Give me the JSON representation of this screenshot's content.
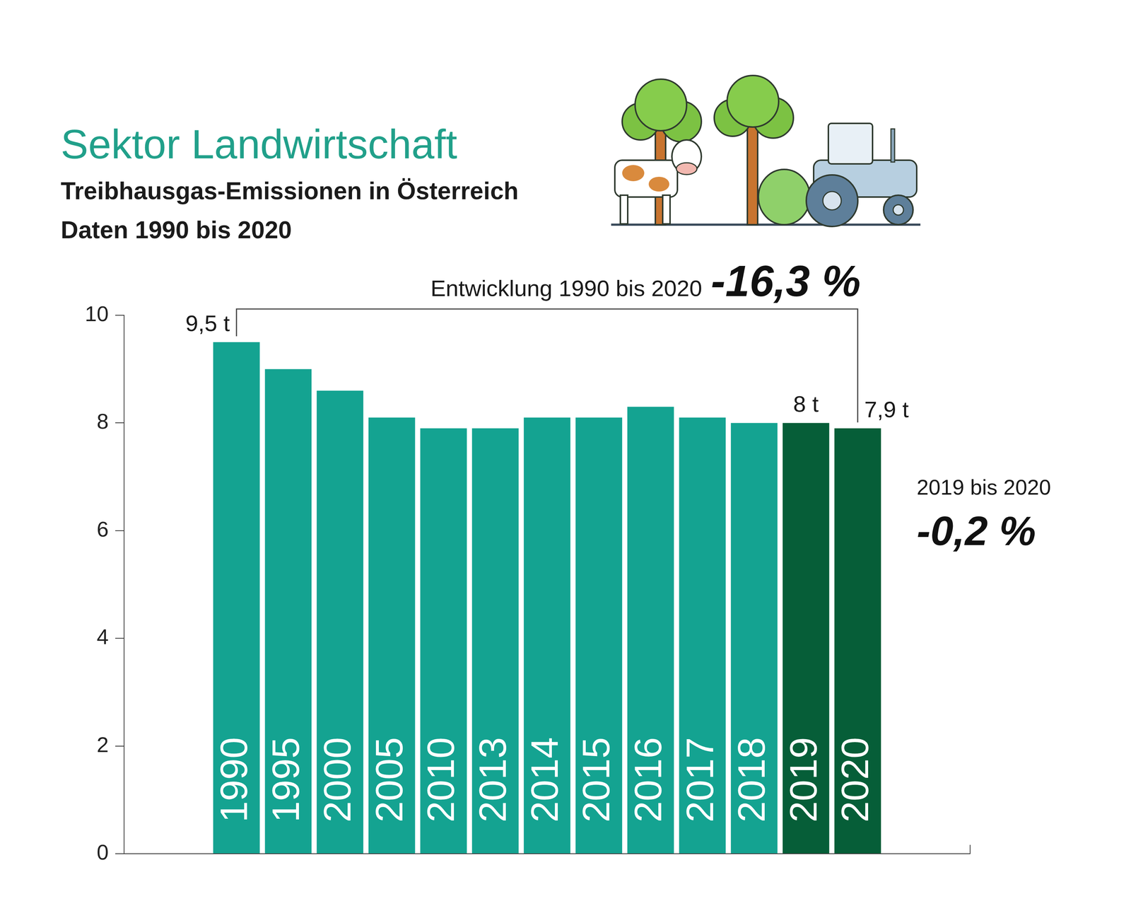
{
  "chart_data": {
    "type": "bar",
    "title": "Sektor Landwirtschaft",
    "subtitle": [
      "Treibhausgas-Emissionen in Österreich",
      "Daten 1990 bis 2020"
    ],
    "categories": [
      "1990",
      "1995",
      "2000",
      "2005",
      "2010",
      "2013",
      "2014",
      "2015",
      "2016",
      "2017",
      "2018",
      "2019",
      "2020"
    ],
    "values": [
      9.5,
      9.0,
      8.6,
      8.1,
      7.9,
      7.9,
      8.1,
      8.1,
      8.3,
      8.1,
      8.0,
      8.0,
      7.9
    ],
    "value_labels": [
      "9,5 t",
      null,
      null,
      null,
      null,
      null,
      null,
      null,
      null,
      null,
      null,
      "8 t",
      "7,9 t"
    ],
    "colors": [
      "#14a391",
      "#14a391",
      "#14a391",
      "#14a391",
      "#14a391",
      "#14a391",
      "#14a391",
      "#14a391",
      "#14a391",
      "#14a391",
      "#14a391",
      "#065e38",
      "#065e38"
    ],
    "ylim": [
      0,
      10
    ],
    "yticks": [
      0,
      2,
      4,
      6,
      8,
      10
    ],
    "grid": false,
    "annotations": [
      {
        "label": "Entwicklung 1990 bis 2020",
        "text": "-16,3 %"
      },
      {
        "label": "2019 bis 2020",
        "text": "-0,2 %"
      }
    ]
  }
}
